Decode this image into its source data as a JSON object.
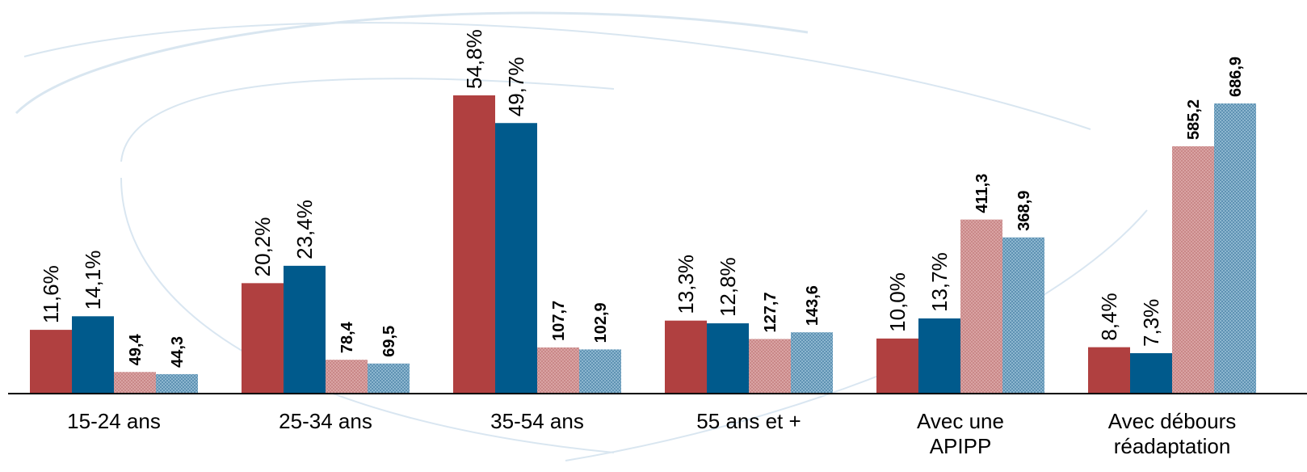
{
  "chart_data": {
    "type": "bar",
    "categories": [
      [
        "15-24 ans"
      ],
      [
        "25-34 ans"
      ],
      [
        "35-54 ans"
      ],
      [
        "55 ans et +"
      ],
      [
        "Avec une",
        "APIPP"
      ],
      [
        "Avec débours",
        "réadaptation"
      ]
    ],
    "series": [
      {
        "values": [
          11.6,
          20.2,
          54.8,
          13.3,
          10.0,
          8.4
        ],
        "labels": [
          "11,6%",
          "20,2%",
          "54,8%",
          "13,3%",
          "10,0%",
          "8,4%"
        ],
        "color": "#b04040",
        "style": "solid",
        "scale": "percent"
      },
      {
        "values": [
          14.1,
          23.4,
          49.7,
          12.8,
          13.7,
          7.3
        ],
        "labels": [
          "14,1%",
          "23,4%",
          "49,7%",
          "12,8%",
          "13,7%",
          "7,3%"
        ],
        "color": "#005a8c",
        "style": "solid",
        "scale": "percent"
      },
      {
        "values": [
          49.4,
          78.4,
          107.7,
          127.7,
          411.3,
          585.2
        ],
        "labels": [
          "49,4",
          "78,4",
          "107,7",
          "127,7",
          "411,3",
          "585,2"
        ],
        "color": "#d99a9a",
        "style": "hatched",
        "scale": "amount"
      },
      {
        "values": [
          44.3,
          69.5,
          102.9,
          143.6,
          368.9,
          686.9
        ],
        "labels": [
          "44,3",
          "69,5",
          "102,9",
          "143,6",
          "368,9",
          "686,9"
        ],
        "color": "#6d9fbd",
        "style": "hatched",
        "scale": "amount"
      }
    ],
    "percent_axis_max": 60,
    "amount_axis_max": 750,
    "legend": "none",
    "grid": false
  }
}
